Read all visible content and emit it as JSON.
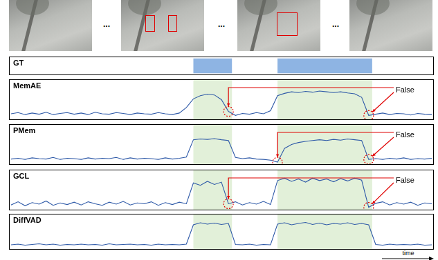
{
  "frames": {
    "separator": "..."
  },
  "chart_data": [
    {
      "type": "interval",
      "title": "GT",
      "intervals": [
        [
          52,
          63
        ],
        [
          76,
          103
        ]
      ],
      "color": "#8eb4e3",
      "xlim": [
        0,
        120
      ],
      "tick_labels": false,
      "grid": false
    },
    {
      "type": "line",
      "title": "MemAE",
      "color": "#2f5aa8",
      "xlim": [
        0,
        120
      ],
      "ylim": [
        0,
        1
      ],
      "tick_labels": false,
      "grid": false,
      "x": [
        0,
        2,
        4,
        6,
        8,
        10,
        12,
        14,
        16,
        18,
        20,
        22,
        24,
        26,
        28,
        30,
        32,
        34,
        36,
        38,
        40,
        42,
        44,
        46,
        48,
        50,
        52,
        54,
        56,
        58,
        60,
        62,
        64,
        66,
        68,
        70,
        72,
        74,
        76,
        78,
        80,
        82,
        84,
        86,
        88,
        90,
        92,
        94,
        96,
        98,
        100,
        102,
        104,
        106,
        108,
        110,
        112,
        114,
        116,
        118,
        120
      ],
      "values": [
        0.14,
        0.17,
        0.12,
        0.16,
        0.13,
        0.18,
        0.12,
        0.15,
        0.17,
        0.13,
        0.16,
        0.12,
        0.18,
        0.14,
        0.13,
        0.17,
        0.15,
        0.12,
        0.16,
        0.14,
        0.13,
        0.17,
        0.14,
        0.12,
        0.16,
        0.3,
        0.52,
        0.6,
        0.64,
        0.62,
        0.5,
        0.2,
        0.1,
        0.15,
        0.13,
        0.17,
        0.14,
        0.22,
        0.6,
        0.66,
        0.7,
        0.68,
        0.71,
        0.69,
        0.72,
        0.7,
        0.68,
        0.7,
        0.67,
        0.65,
        0.56,
        0.1,
        0.13,
        0.16,
        0.12,
        0.15,
        0.14,
        0.11,
        0.15,
        0.13,
        0.12
      ],
      "annotations": [
        {
          "text": "False",
          "x": [
            62,
            102
          ]
        }
      ]
    },
    {
      "type": "line",
      "title": "PMem",
      "color": "#2f5aa8",
      "xlim": [
        0,
        120
      ],
      "ylim": [
        0,
        1
      ],
      "tick_labels": false,
      "grid": false,
      "x": [
        0,
        2,
        4,
        6,
        8,
        10,
        12,
        14,
        16,
        18,
        20,
        22,
        24,
        26,
        28,
        30,
        32,
        34,
        36,
        38,
        40,
        42,
        44,
        46,
        48,
        50,
        52,
        54,
        56,
        58,
        60,
        62,
        64,
        66,
        68,
        70,
        72,
        74,
        76,
        78,
        80,
        82,
        84,
        86,
        88,
        90,
        92,
        94,
        96,
        98,
        100,
        102,
        104,
        106,
        108,
        110,
        112,
        114,
        116,
        118,
        120
      ],
      "values": [
        0.13,
        0.15,
        0.12,
        0.16,
        0.14,
        0.13,
        0.17,
        0.12,
        0.15,
        0.14,
        0.12,
        0.16,
        0.13,
        0.15,
        0.14,
        0.17,
        0.12,
        0.16,
        0.13,
        0.15,
        0.14,
        0.12,
        0.16,
        0.13,
        0.15,
        0.18,
        0.62,
        0.64,
        0.63,
        0.65,
        0.62,
        0.6,
        0.17,
        0.14,
        0.16,
        0.13,
        0.12,
        0.1,
        0.05,
        0.4,
        0.5,
        0.55,
        0.58,
        0.6,
        0.62,
        0.6,
        0.63,
        0.61,
        0.64,
        0.62,
        0.6,
        0.12,
        0.14,
        0.12,
        0.15,
        0.13,
        0.16,
        0.12,
        0.14,
        0.13,
        0.15
      ],
      "annotations": [
        {
          "text": "False",
          "x": [
            76,
            102
          ]
        }
      ]
    },
    {
      "type": "line",
      "title": "GCL",
      "color": "#2f5aa8",
      "xlim": [
        0,
        120
      ],
      "ylim": [
        0,
        1
      ],
      "tick_labels": false,
      "grid": false,
      "x": [
        0,
        2,
        4,
        6,
        8,
        10,
        12,
        14,
        16,
        18,
        20,
        22,
        24,
        26,
        28,
        30,
        32,
        34,
        36,
        38,
        40,
        42,
        44,
        46,
        48,
        50,
        52,
        54,
        56,
        58,
        60,
        62,
        64,
        66,
        68,
        70,
        72,
        74,
        76,
        78,
        80,
        82,
        84,
        86,
        88,
        90,
        92,
        94,
        96,
        98,
        100,
        102,
        104,
        106,
        108,
        110,
        112,
        114,
        116,
        118,
        120
      ],
      "values": [
        0.12,
        0.2,
        0.1,
        0.18,
        0.14,
        0.22,
        0.11,
        0.17,
        0.13,
        0.19,
        0.12,
        0.2,
        0.15,
        0.11,
        0.19,
        0.14,
        0.21,
        0.12,
        0.17,
        0.15,
        0.2,
        0.11,
        0.18,
        0.13,
        0.19,
        0.15,
        0.68,
        0.62,
        0.72,
        0.64,
        0.7,
        0.15,
        0.2,
        0.12,
        0.18,
        0.14,
        0.21,
        0.13,
        0.74,
        0.8,
        0.72,
        0.78,
        0.7,
        0.8,
        0.74,
        0.78,
        0.71,
        0.79,
        0.73,
        0.8,
        0.75,
        0.06,
        0.16,
        0.2,
        0.12,
        0.18,
        0.14,
        0.19,
        0.11,
        0.17,
        0.15
      ],
      "annotations": [
        {
          "text": "False",
          "x": [
            62,
            102
          ]
        }
      ]
    },
    {
      "type": "line",
      "title": "DiffVAD",
      "color": "#2f5aa8",
      "xlim": [
        0,
        120
      ],
      "ylim": [
        0,
        1
      ],
      "tick_labels": false,
      "grid": false,
      "x_label": "time",
      "x": [
        0,
        2,
        4,
        6,
        8,
        10,
        12,
        14,
        16,
        18,
        20,
        22,
        24,
        26,
        28,
        30,
        32,
        34,
        36,
        38,
        40,
        42,
        44,
        46,
        48,
        50,
        52,
        54,
        56,
        58,
        60,
        62,
        64,
        66,
        68,
        70,
        72,
        74,
        76,
        78,
        80,
        82,
        84,
        86,
        88,
        90,
        92,
        94,
        96,
        98,
        100,
        102,
        104,
        106,
        108,
        110,
        112,
        114,
        116,
        118,
        120
      ],
      "values": [
        0.12,
        0.14,
        0.11,
        0.13,
        0.15,
        0.12,
        0.14,
        0.11,
        0.13,
        0.12,
        0.14,
        0.12,
        0.13,
        0.11,
        0.15,
        0.12,
        0.13,
        0.14,
        0.12,
        0.13,
        0.11,
        0.14,
        0.12,
        0.13,
        0.12,
        0.14,
        0.7,
        0.76,
        0.72,
        0.75,
        0.71,
        0.74,
        0.13,
        0.12,
        0.14,
        0.11,
        0.13,
        0.12,
        0.72,
        0.76,
        0.7,
        0.74,
        0.77,
        0.71,
        0.75,
        0.7,
        0.74,
        0.72,
        0.76,
        0.71,
        0.74,
        0.7,
        0.13,
        0.11,
        0.14,
        0.12,
        0.13,
        0.12,
        0.14,
        0.11,
        0.12
      ]
    }
  ]
}
